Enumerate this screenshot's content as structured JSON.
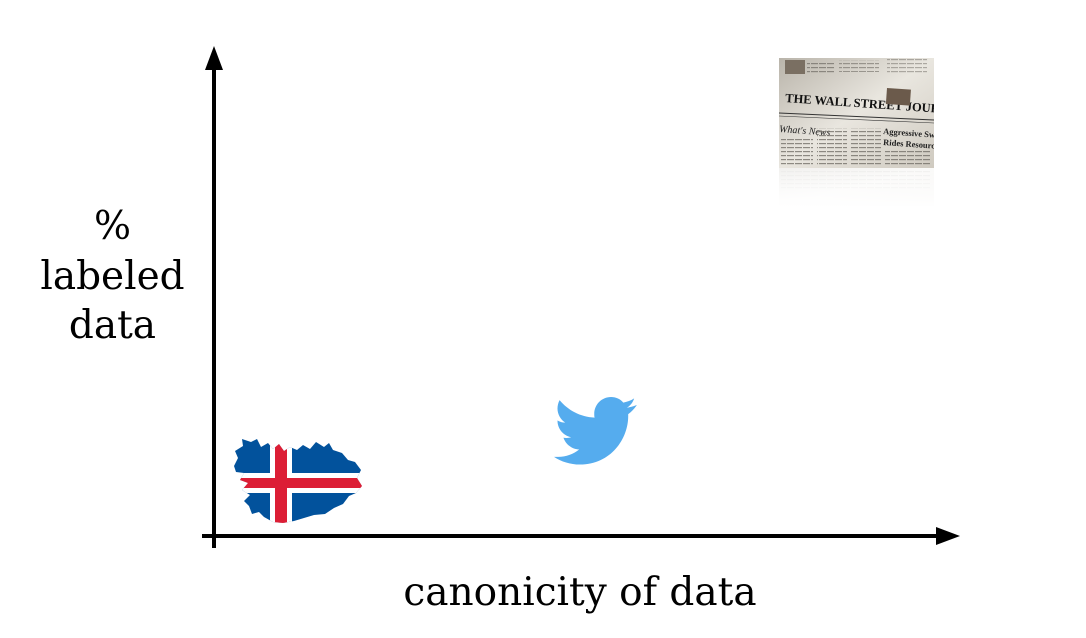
{
  "diagram": {
    "ylabel_lines": [
      "%",
      "labeled",
      "data"
    ],
    "xlabel": "canonicity of data",
    "items": [
      {
        "icon": "iceland-flag-map-icon",
        "colors": {
          "blue": "#02529C",
          "red": "#DC1E35",
          "white": "#FFFFFF"
        }
      },
      {
        "icon": "twitter-bird-icon",
        "colors": {
          "blue": "#55ACEE"
        }
      },
      {
        "icon": "newspaper-photo-icon",
        "masthead": "THE WALL STREET JOURNAL.",
        "headlines": [
          "What's News",
          "Aggressive Swine Go",
          "Rides Resources"
        ]
      }
    ]
  }
}
